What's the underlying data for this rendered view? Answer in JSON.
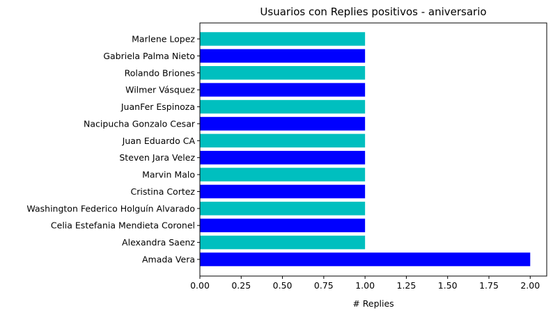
{
  "chart_data": {
    "type": "bar",
    "orientation": "horizontal",
    "title": "Usuarios con Replies positivos - aniversario",
    "xlabel": "# Replies",
    "ylabel": "",
    "xlim": [
      0,
      2.1
    ],
    "xticks": [
      "0.00",
      "0.25",
      "0.50",
      "0.75",
      "1.00",
      "1.25",
      "1.50",
      "1.75",
      "2.00"
    ],
    "grid": false,
    "categories": [
      "Marlene Lopez",
      "Gabriela Palma Nieto",
      "Rolando Briones",
      "Wilmer Vásquez",
      "JuanFer Espinoza",
      "Nacipucha Gonzalo Cesar",
      "Juan Eduardo CA",
      "Steven Jara Velez",
      "Marvin Malo",
      "Cristina Cortez",
      "Washington Federico Holguín Alvarado",
      "Celia Estefania Mendieta Coronel",
      "Alexandra Saenz",
      "Amada Vera"
    ],
    "values": [
      1,
      1,
      1,
      1,
      1,
      1,
      1,
      1,
      1,
      1,
      1,
      1,
      1,
      2
    ],
    "bar_colors": [
      "#00bfbf",
      "#0000ff",
      "#00bfbf",
      "#0000ff",
      "#00bfbf",
      "#0000ff",
      "#00bfbf",
      "#0000ff",
      "#00bfbf",
      "#0000ff",
      "#00bfbf",
      "#0000ff",
      "#00bfbf",
      "#0000ff"
    ]
  }
}
